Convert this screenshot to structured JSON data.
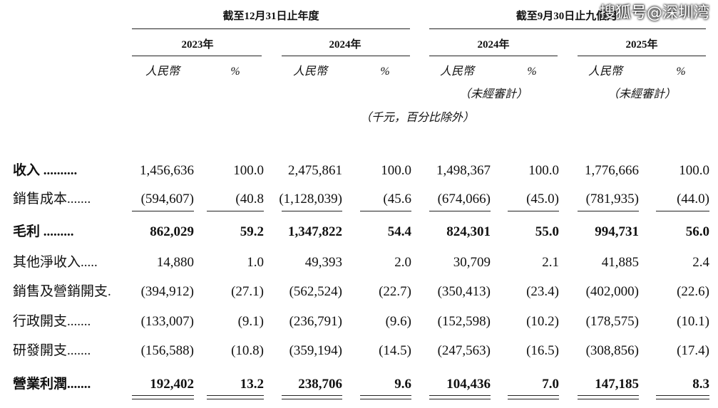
{
  "header": {
    "groups": [
      "截至12月31日止年度",
      "截至9月30日止九個月"
    ],
    "years": [
      "2023年",
      "2024年",
      "2024年",
      "2025年"
    ],
    "units": [
      "人民幣",
      "%",
      "人民幣",
      "%",
      "人民幣",
      "%",
      "人民幣",
      "%"
    ],
    "audit_notes": [
      "（未經審計）",
      "（未經審計）"
    ],
    "unit_note": "（千元，百分比除外）"
  },
  "table": {
    "rows": [
      {
        "label": "收入 ..........",
        "values": [
          "1,456,636",
          "100.0",
          "2,475,861",
          "100.0",
          "1,498,367",
          "100.0",
          "1,776,666",
          "100.0"
        ]
      },
      {
        "label": "銷售成本.......",
        "values": [
          "(594,607)",
          "(40.8",
          "(1,128,039)",
          "(45.6",
          "(674,066)",
          "(45.0)",
          "(781,935)",
          "(44.0)"
        ]
      },
      {
        "label": "毛利 .........",
        "values": [
          "862,029",
          "59.2",
          "1,347,822",
          "54.4",
          "824,301",
          "55.0",
          "994,731",
          "56.0"
        ]
      },
      {
        "label": "其他淨收入.....",
        "values": [
          "14,880",
          "1.0",
          "49,393",
          "2.0",
          "30,709",
          "2.1",
          "41,885",
          "2.4"
        ]
      },
      {
        "label": "銷售及營銷開支.",
        "values": [
          "(394,912)",
          "(27.1)",
          "(562,524)",
          "(22.7)",
          "(350,413)",
          "(23.4)",
          "(402,000)",
          "(22.6)"
        ]
      },
      {
        "label": "行政開支.......",
        "values": [
          "(133,007)",
          "(9.1)",
          "(236,791)",
          "(9.6)",
          "(152,598)",
          "(10.2)",
          "(178,575)",
          "(10.1)"
        ]
      },
      {
        "label": "研發開支.......",
        "values": [
          "(156,588)",
          "(10.8)",
          "(359,194)",
          "(14.5)",
          "(247,563)",
          "(16.5)",
          "(308,856)",
          "(17.4)"
        ]
      },
      {
        "label": "營業利潤.......",
        "values": [
          "192,402",
          "13.2",
          "238,706",
          "9.6",
          "104,436",
          "7.0",
          "147,185",
          "8.3"
        ]
      }
    ]
  },
  "watermark": "搜狐号@深圳湾"
}
